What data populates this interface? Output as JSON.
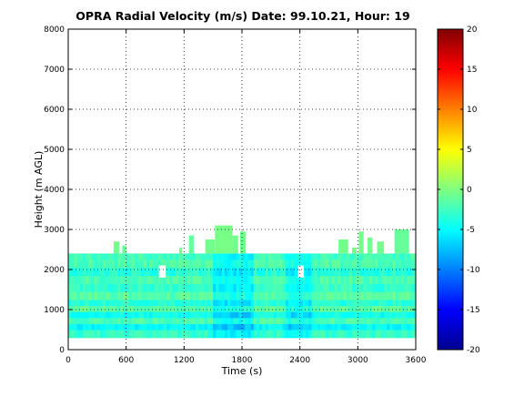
{
  "chart_data": {
    "type": "heatmap",
    "title": "OPRA Radial Velocity (m/s)  Date: 99.10.21, Hour: 19",
    "xlabel": "Time (s)",
    "ylabel": "Height (m AGL)",
    "xlim": [
      0,
      3600
    ],
    "ylim": [
      0,
      8000
    ],
    "x_ticks": [
      "0",
      "600",
      "1200",
      "1800",
      "2400",
      "3000",
      "3600"
    ],
    "y_ticks": [
      "0",
      "1000",
      "2000",
      "3000",
      "4000",
      "5000",
      "6000",
      "7000",
      "8000"
    ],
    "grid": true,
    "colorbar": {
      "colormap": "jet",
      "range": [
        -20,
        20
      ],
      "ticks": [
        "20",
        "15",
        "10",
        "5",
        "0",
        "-5",
        "-10",
        "-15",
        "-20"
      ]
    },
    "height_bands": [
      {
        "bottom": 300,
        "top": 500,
        "value": -3
      },
      {
        "bottom": 500,
        "top": 650,
        "value": -5
      },
      {
        "bottom": 650,
        "top": 800,
        "value": -2
      },
      {
        "bottom": 800,
        "top": 950,
        "value": -4.5
      },
      {
        "bottom": 950,
        "top": 1100,
        "value": -1.5
      },
      {
        "bottom": 1100,
        "top": 1250,
        "value": -3.5
      },
      {
        "bottom": 1250,
        "top": 1450,
        "value": -1.5
      },
      {
        "bottom": 1450,
        "top": 1650,
        "value": -3
      },
      {
        "bottom": 1650,
        "top": 1850,
        "value": -2
      },
      {
        "bottom": 1850,
        "top": 2050,
        "value": -3.5
      },
      {
        "bottom": 2050,
        "top": 2250,
        "value": -2
      },
      {
        "bottom": 2250,
        "top": 2400,
        "value": -2.5
      }
    ],
    "time_anomalies": [
      {
        "start": 1500,
        "end": 1900,
        "value": -2.5
      },
      {
        "start": 2250,
        "end": 2500,
        "value": -2
      }
    ],
    "gaps": [
      {
        "x0": 940,
        "x1": 1010,
        "y0": 1800,
        "y1": 2100
      },
      {
        "x0": 2380,
        "x1": 2440,
        "y0": 1800,
        "y1": 2100
      }
    ],
    "upper_echoes": [
      {
        "x0": 470,
        "x1": 530,
        "y0": 2400,
        "y1": 2700,
        "value": -0.5
      },
      {
        "x0": 560,
        "x1": 600,
        "y0": 2400,
        "y1": 2600,
        "value": -1
      },
      {
        "x0": 1150,
        "x1": 1180,
        "y0": 2400,
        "y1": 2550,
        "value": -0.5
      },
      {
        "x0": 1250,
        "x1": 1300,
        "y0": 2400,
        "y1": 2850,
        "value": -1
      },
      {
        "x0": 1420,
        "x1": 1520,
        "y0": 2400,
        "y1": 2750,
        "value": -0.5
      },
      {
        "x0": 1520,
        "x1": 1700,
        "y0": 2400,
        "y1": 3100,
        "value": -0.3
      },
      {
        "x0": 1700,
        "x1": 1760,
        "y0": 2400,
        "y1": 2850,
        "value": -0.5
      },
      {
        "x0": 1780,
        "x1": 1840,
        "y0": 2400,
        "y1": 2950,
        "value": -0.6
      },
      {
        "x0": 2800,
        "x1": 2900,
        "y0": 2400,
        "y1": 2750,
        "value": -0.5
      },
      {
        "x0": 2940,
        "x1": 2990,
        "y0": 2400,
        "y1": 2550,
        "value": -0.5
      },
      {
        "x0": 3010,
        "x1": 3060,
        "y0": 2400,
        "y1": 2950,
        "value": -0.5
      },
      {
        "x0": 3100,
        "x1": 3150,
        "y0": 2400,
        "y1": 2800,
        "value": -0.5
      },
      {
        "x0": 3200,
        "x1": 3270,
        "y0": 2400,
        "y1": 2700,
        "value": -0.5
      },
      {
        "x0": 3380,
        "x1": 3530,
        "y0": 2400,
        "y1": 3000,
        "value": -1
      }
    ]
  }
}
